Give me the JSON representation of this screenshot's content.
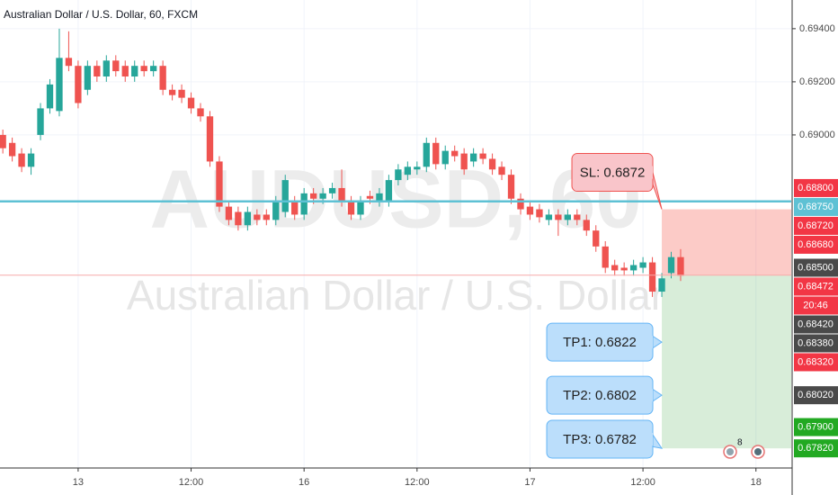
{
  "chart_data": {
    "type": "candlestick",
    "title": "Australian Dollar / U.S. Dollar, 60, FXCM",
    "watermark": [
      "AUDUSD, 60",
      "Australian Dollar / U.S. Dollar"
    ],
    "up_color": "#26a69a",
    "down_color": "#ef5350",
    "grid": true,
    "xlim": [
      -0.3,
      83.75
    ],
    "xticks": [
      {
        "value": 8,
        "label": "13"
      },
      {
        "value": 20,
        "label": "12:00"
      },
      {
        "value": 32,
        "label": "16"
      },
      {
        "value": 44,
        "label": "12:00"
      },
      {
        "value": 56,
        "label": "17"
      },
      {
        "value": 68,
        "label": "12:00"
      },
      {
        "value": 80,
        "label": "18"
      }
    ],
    "ylim": [
      0.67746,
      0.69508
    ],
    "yticks": [
      {
        "value": 0.694,
        "label": "0.69400"
      },
      {
        "value": 0.692,
        "label": "0.69200"
      },
      {
        "value": 0.69,
        "label": "0.69000"
      }
    ],
    "open": [
      0.69,
      0.6897,
      0.6893,
      0.6888,
      0.69,
      0.691,
      0.6909,
      0.6929,
      0.6926,
      0.6917,
      0.6926,
      0.6922,
      0.6928,
      0.6926,
      0.6922,
      0.6926,
      0.6924,
      0.6926,
      0.6917,
      0.6917,
      0.6914,
      0.691,
      0.6907,
      0.689,
      0.6873,
      0.6871,
      0.6866,
      0.687,
      0.687,
      0.6868,
      0.6871,
      0.6875,
      0.687,
      0.6878,
      0.6876,
      0.6878,
      0.688,
      0.6875,
      0.687,
      0.6877,
      0.6875,
      0.6875,
      0.6883,
      0.6885,
      0.6887,
      0.6888,
      0.6897,
      0.6889,
      0.6894,
      0.6893,
      0.689,
      0.6893,
      0.6891,
      0.6888,
      0.6885,
      0.6876,
      0.6873,
      0.6872,
      0.6868,
      0.687,
      0.6868,
      0.687,
      0.6868,
      0.6864,
      0.6858,
      0.6851,
      0.685,
      0.6849,
      0.685,
      0.6852,
      0.6841,
      0.6848,
      0.6854
    ],
    "high": [
      0.6902,
      0.6899,
      0.6895,
      0.6895,
      0.6912,
      0.6921,
      0.694,
      0.6939,
      0.6928,
      0.6928,
      0.6928,
      0.693,
      0.693,
      0.6928,
      0.6928,
      0.6928,
      0.6928,
      0.6928,
      0.6919,
      0.6919,
      0.6916,
      0.6912,
      0.6909,
      0.6892,
      0.6875,
      0.6873,
      0.6873,
      0.6872,
      0.6872,
      0.6877,
      0.6885,
      0.6877,
      0.688,
      0.688,
      0.688,
      0.6882,
      0.6887,
      0.6877,
      0.6877,
      0.6879,
      0.688,
      0.6885,
      0.6889,
      0.689,
      0.689,
      0.6899,
      0.6899,
      0.6896,
      0.6896,
      0.6895,
      0.6895,
      0.6895,
      0.6893,
      0.689,
      0.6887,
      0.6878,
      0.6875,
      0.6874,
      0.6872,
      0.6872,
      0.6872,
      0.6872,
      0.687,
      0.6866,
      0.686,
      0.6853,
      0.6852,
      0.6853,
      0.6854,
      0.6854,
      0.6848,
      0.6856,
      0.6857
    ],
    "low": [
      0.6893,
      0.689,
      0.6886,
      0.6885,
      0.6898,
      0.6908,
      0.6907,
      0.6924,
      0.691,
      0.6915,
      0.692,
      0.692,
      0.6922,
      0.692,
      0.692,
      0.6922,
      0.6922,
      0.6915,
      0.6913,
      0.6912,
      0.6908,
      0.6905,
      0.6888,
      0.6871,
      0.6866,
      0.6864,
      0.6864,
      0.6866,
      0.6866,
      0.6866,
      0.6869,
      0.6868,
      0.6868,
      0.6874,
      0.6874,
      0.6876,
      0.6873,
      0.6868,
      0.6868,
      0.6874,
      0.6873,
      0.6873,
      0.6881,
      0.6883,
      0.6885,
      0.6886,
      0.6887,
      0.6887,
      0.689,
      0.6885,
      0.6888,
      0.6889,
      0.6885,
      0.6883,
      0.6874,
      0.687,
      0.6868,
      0.6867,
      0.6866,
      0.6862,
      0.6866,
      0.6866,
      0.6862,
      0.6856,
      0.6848,
      0.6847,
      0.6847,
      0.6847,
      0.6848,
      0.6839,
      0.6839,
      0.6846,
      0.6845
    ],
    "close": [
      0.6895,
      0.6892,
      0.6888,
      0.6893,
      0.691,
      0.6919,
      0.6929,
      0.6926,
      0.6912,
      0.6926,
      0.6922,
      0.6928,
      0.6924,
      0.6922,
      0.6926,
      0.6924,
      0.6926,
      0.6917,
      0.6915,
      0.6914,
      0.691,
      0.6907,
      0.689,
      0.6873,
      0.6868,
      0.6866,
      0.6871,
      0.6868,
      0.6868,
      0.6875,
      0.6883,
      0.687,
      0.6878,
      0.6876,
      0.6878,
      0.688,
      0.6875,
      0.687,
      0.6875,
      0.6876,
      0.6878,
      0.6883,
      0.6887,
      0.6888,
      0.6888,
      0.6897,
      0.6889,
      0.6894,
      0.6892,
      0.6887,
      0.6893,
      0.6891,
      0.6887,
      0.6885,
      0.6876,
      0.6872,
      0.687,
      0.6869,
      0.687,
      0.6868,
      0.687,
      0.6868,
      0.6864,
      0.6858,
      0.685,
      0.6849,
      0.6849,
      0.6851,
      0.6852,
      0.6841,
      0.6846,
      0.6854,
      0.6847
    ],
    "hline": {
      "value": 0.6875,
      "color": "#5ec1d4"
    },
    "position": {
      "entry": 0.68472,
      "stop_loss": 0.6872,
      "targets": [
        0.6822,
        0.6802,
        0.6782
      ],
      "start": 70
    },
    "callouts": [
      "SL: 0.6872",
      "TP1: 0.6822",
      "TP2: 0.6802",
      "TP3: 0.6782"
    ],
    "price_labels": [
      {
        "value": 0.688,
        "label": "0.68800",
        "color": "#f23645"
      },
      {
        "value": 0.6875,
        "label": "0.68750",
        "color": "#5ec1d4"
      },
      {
        "value": 0.6872,
        "label": "0.68720",
        "color": "#f23645"
      },
      {
        "value": 0.6868,
        "label": "0.68680",
        "color": "#f23645"
      },
      {
        "value": 0.685,
        "label": "0.68500",
        "color": "#4a4a4a"
      },
      {
        "value": 0.68472,
        "label": "0.68472",
        "color": "#f23645",
        "countdown": "20:46"
      },
      {
        "value": 0.6842,
        "label": "0.68420",
        "color": "#4a4a4a"
      },
      {
        "value": 0.6838,
        "label": "0.68380",
        "color": "#4a4a4a"
      },
      {
        "value": 0.6832,
        "label": "0.68320",
        "color": "#f23645"
      },
      {
        "value": 0.6802,
        "label": "0.68020",
        "color": "#4a4a4a"
      },
      {
        "value": 0.679,
        "label": "0.67900",
        "color": "#22a922"
      },
      {
        "value": 0.6782,
        "label": "0.67820",
        "color": "#22a922"
      }
    ],
    "event_badge": "8"
  }
}
